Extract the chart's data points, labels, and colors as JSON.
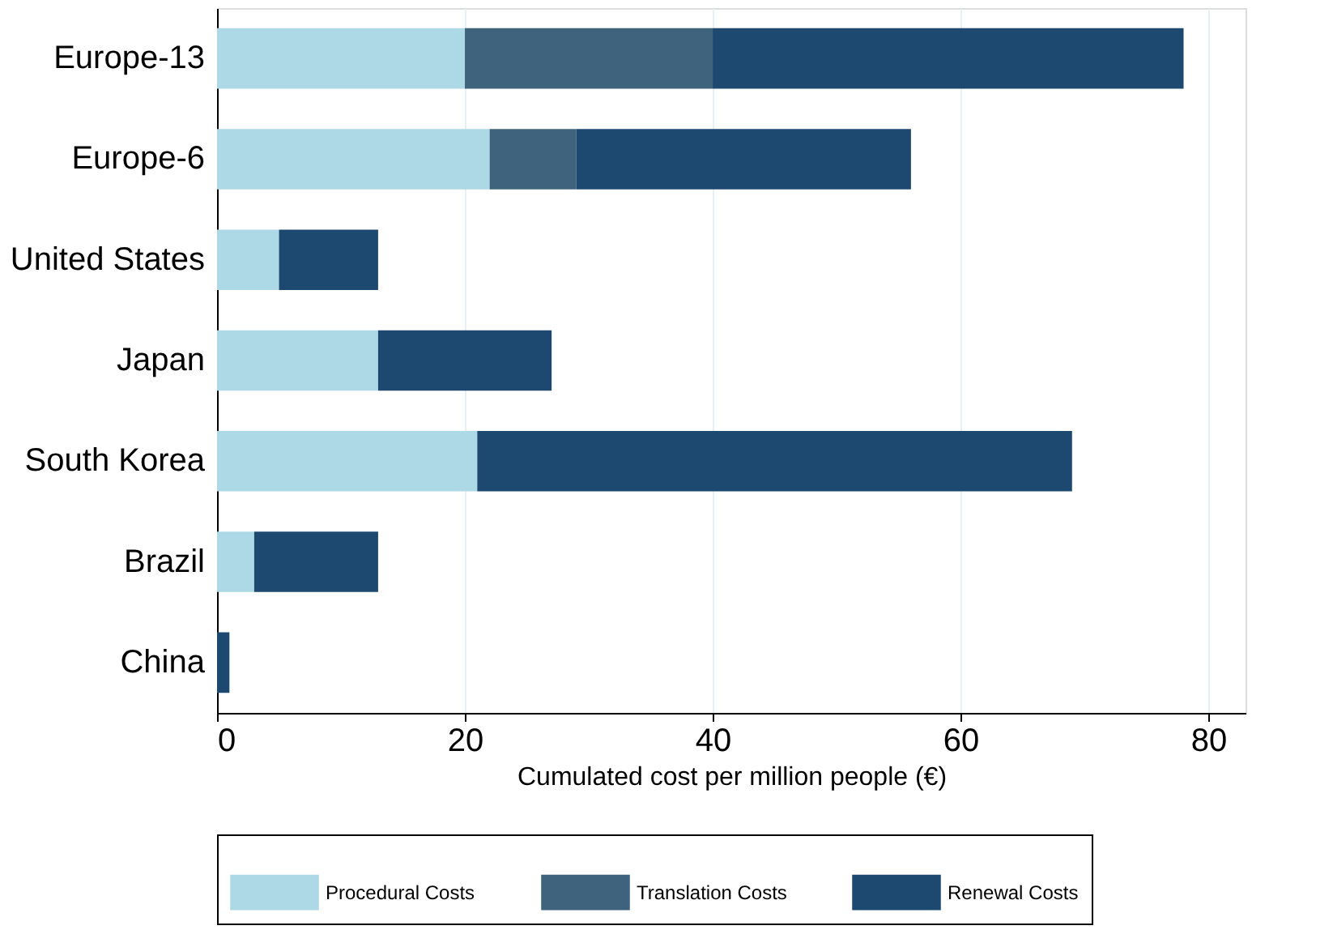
{
  "chart_data": {
    "type": "bar",
    "orientation": "horizontal",
    "stacked": true,
    "categories": [
      "Europe-13",
      "Europe-6",
      "United States",
      "Japan",
      "South Korea",
      "Brazil",
      "China"
    ],
    "series": [
      {
        "name": "Procedural Costs",
        "color": "#add8e6",
        "values": [
          20,
          22,
          5,
          13,
          21,
          3,
          null
        ]
      },
      {
        "name": "Translation Costs",
        "color": "#3f627d",
        "values": [
          20,
          7,
          null,
          null,
          null,
          null,
          null
        ]
      },
      {
        "name": "Renewal Costs",
        "color": "#1d4870",
        "values": [
          38,
          27,
          8,
          14,
          48,
          10,
          1
        ]
      }
    ],
    "xlabel": "Cumulated cost per million people (€)",
    "xlim": [
      0,
      83
    ],
    "xticks": [
      0,
      20,
      40,
      60,
      80
    ],
    "grid": "x",
    "legend": "bottom"
  }
}
